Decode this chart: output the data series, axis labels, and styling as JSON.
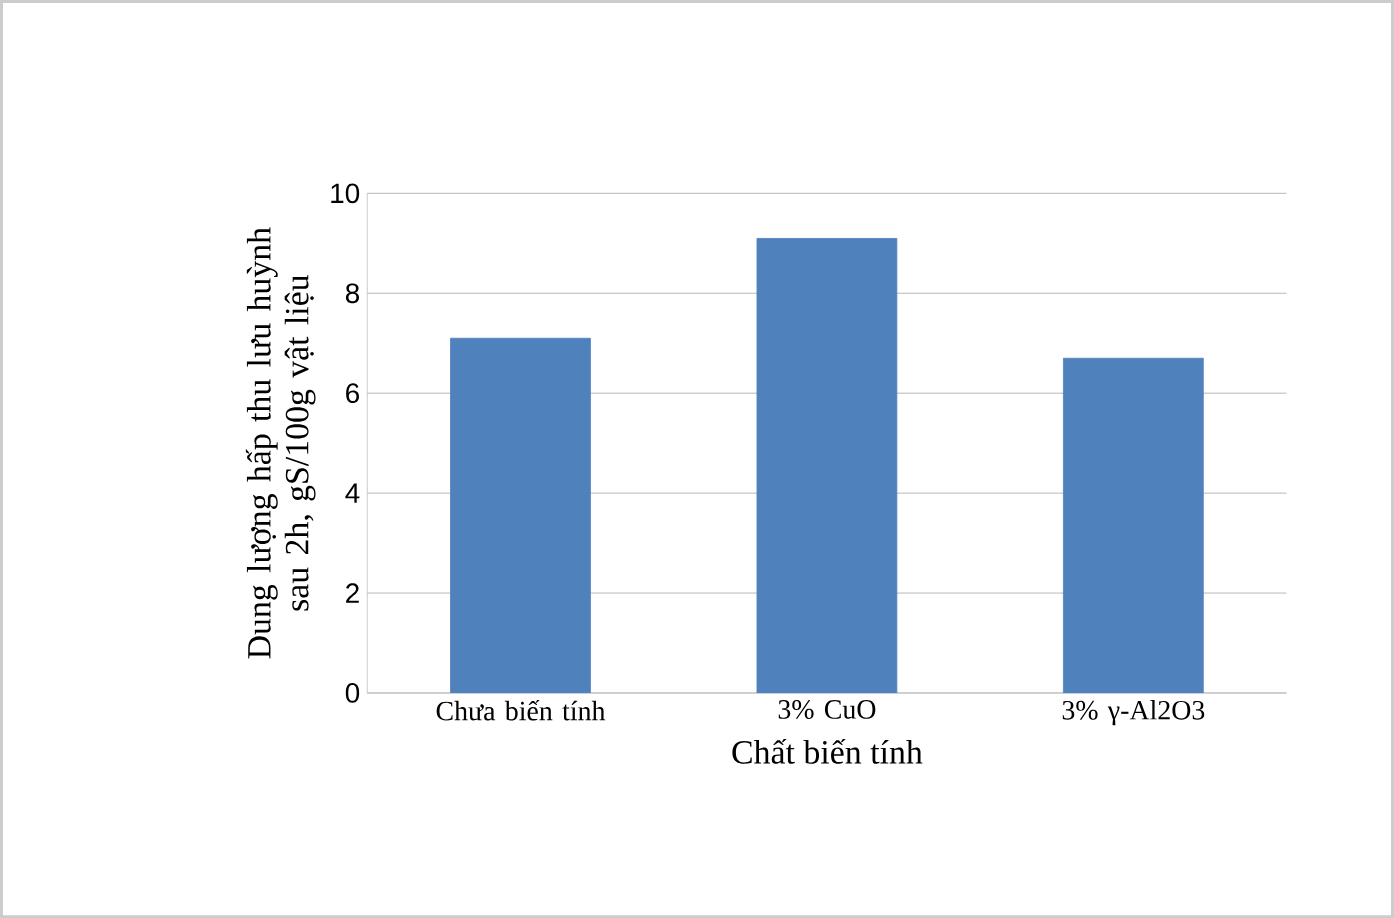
{
  "chart_data": {
    "type": "bar",
    "xlabel": "Chất biến tính",
    "ylabel": "Dung lượng hấp thu lưu huỳnh sau 2h, gS/100g vật liệu",
    "categories": [
      "Chưa biến tính",
      "3% CuO",
      "3% γ-Al2O3"
    ],
    "values": [
      7.1,
      9.1,
      6.7
    ],
    "color": "#4f81bd",
    "ylim": [
      0,
      10
    ],
    "yticks": [
      0,
      2,
      4,
      6,
      8,
      10
    ],
    "grid": "y"
  }
}
